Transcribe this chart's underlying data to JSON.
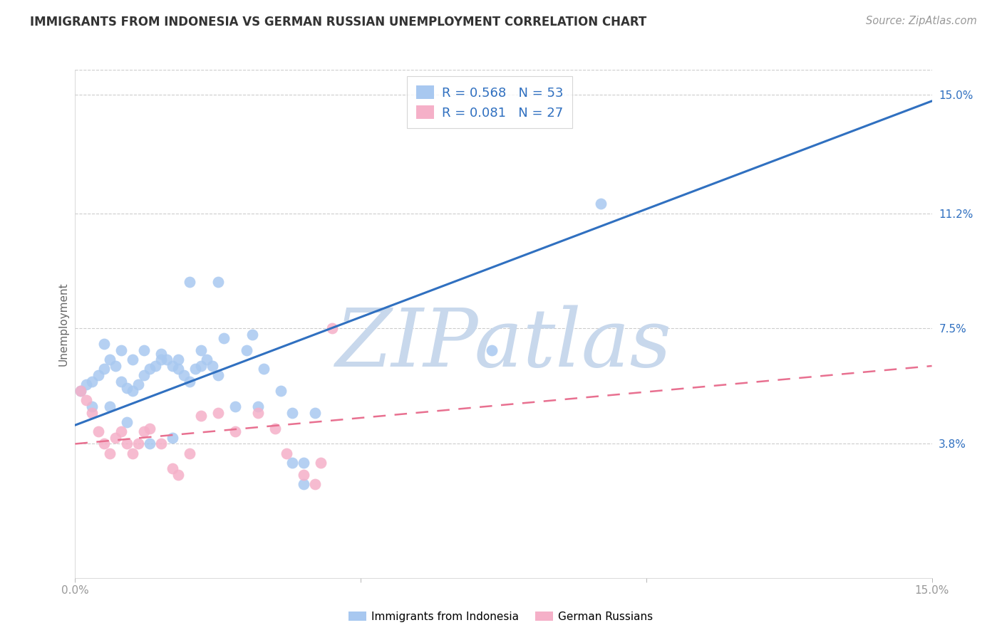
{
  "title": "IMMIGRANTS FROM INDONESIA VS GERMAN RUSSIAN UNEMPLOYMENT CORRELATION CHART",
  "source": "Source: ZipAtlas.com",
  "ylabel": "Unemployment",
  "xlim": [
    0.0,
    0.15
  ],
  "ylim": [
    -0.005,
    0.158
  ],
  "blue_R": 0.568,
  "blue_N": 53,
  "pink_R": 0.081,
  "pink_N": 27,
  "blue_color": "#a8c8f0",
  "pink_color": "#f5b0c8",
  "blue_line_color": "#3070c0",
  "pink_line_color": "#e87090",
  "legend_text_color": "#3070c0",
  "grid_color": "#cccccc",
  "watermark_color": "#c8d8ec",
  "blue_scatter_x": [
    0.001,
    0.002,
    0.003,
    0.004,
    0.005,
    0.006,
    0.007,
    0.008,
    0.009,
    0.01,
    0.011,
    0.012,
    0.013,
    0.014,
    0.015,
    0.016,
    0.017,
    0.018,
    0.019,
    0.02,
    0.021,
    0.022,
    0.023,
    0.024,
    0.025,
    0.005,
    0.008,
    0.01,
    0.012,
    0.015,
    0.018,
    0.022,
    0.026,
    0.03,
    0.033,
    0.036,
    0.028,
    0.032,
    0.038,
    0.042,
    0.003,
    0.006,
    0.009,
    0.013,
    0.017,
    0.02,
    0.025,
    0.031,
    0.038,
    0.04,
    0.04,
    0.073,
    0.092
  ],
  "blue_scatter_y": [
    0.055,
    0.057,
    0.058,
    0.06,
    0.062,
    0.065,
    0.063,
    0.058,
    0.056,
    0.055,
    0.057,
    0.06,
    0.062,
    0.063,
    0.065,
    0.065,
    0.063,
    0.062,
    0.06,
    0.058,
    0.062,
    0.063,
    0.065,
    0.063,
    0.06,
    0.07,
    0.068,
    0.065,
    0.068,
    0.067,
    0.065,
    0.068,
    0.072,
    0.068,
    0.062,
    0.055,
    0.05,
    0.05,
    0.048,
    0.048,
    0.05,
    0.05,
    0.045,
    0.038,
    0.04,
    0.09,
    0.09,
    0.073,
    0.032,
    0.032,
    0.025,
    0.068,
    0.115
  ],
  "pink_scatter_x": [
    0.001,
    0.002,
    0.003,
    0.004,
    0.005,
    0.006,
    0.007,
    0.008,
    0.009,
    0.01,
    0.011,
    0.012,
    0.013,
    0.015,
    0.017,
    0.018,
    0.02,
    0.022,
    0.025,
    0.028,
    0.032,
    0.035,
    0.037,
    0.04,
    0.042,
    0.043,
    0.045
  ],
  "pink_scatter_y": [
    0.055,
    0.052,
    0.048,
    0.042,
    0.038,
    0.035,
    0.04,
    0.042,
    0.038,
    0.035,
    0.038,
    0.042,
    0.043,
    0.038,
    0.03,
    0.028,
    0.035,
    0.047,
    0.048,
    0.042,
    0.048,
    0.043,
    0.035,
    0.028,
    0.025,
    0.032,
    0.075
  ],
  "blue_line_x": [
    0.0,
    0.15
  ],
  "blue_line_y": [
    0.044,
    0.148
  ],
  "pink_line_x": [
    0.0,
    0.15
  ],
  "pink_line_y": [
    0.038,
    0.063
  ],
  "ytick_values": [
    0.038,
    0.075,
    0.112,
    0.15
  ],
  "ytick_labels": [
    "3.8%",
    "7.5%",
    "11.2%",
    "15.0%"
  ],
  "xtick_values": [
    0.0,
    0.05,
    0.1,
    0.15
  ],
  "xtick_labels": [
    "0.0%",
    "",
    "",
    "15.0%"
  ]
}
